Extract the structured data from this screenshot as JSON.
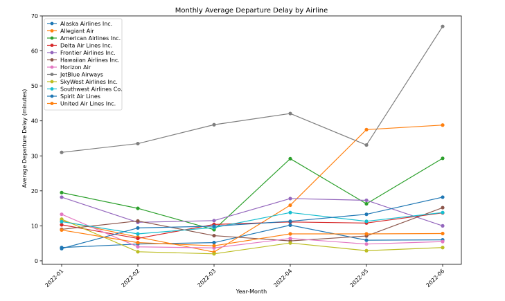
{
  "chart_data": {
    "type": "line",
    "title": "Monthly Average Departure Delay by Airline",
    "xlabel": "Year-Month",
    "ylabel": "Average Departure Delay (minutes)",
    "categories": [
      "2022-01",
      "2022-02",
      "2022-03",
      "2022-04",
      "2022-05",
      "2022-06"
    ],
    "ylim": [
      -1,
      70
    ],
    "yticks": [
      0,
      10,
      20,
      30,
      40,
      50,
      60,
      70
    ],
    "grid": false,
    "legend_position": "upper-left",
    "series": [
      {
        "name": "Alaska Airlines Inc.",
        "color": "#1f77b4",
        "values": [
          3.8,
          4.8,
          5.2,
          10.2,
          5.9,
          6.0
        ]
      },
      {
        "name": "Allegiant Air",
        "color": "#ff7f0e",
        "values": [
          11.4,
          6.8,
          2.5,
          15.9,
          37.5,
          38.8
        ]
      },
      {
        "name": "American Airlines Inc.",
        "color": "#2ca02c",
        "values": [
          19.5,
          15.0,
          8.9,
          29.2,
          16.3,
          29.3
        ]
      },
      {
        "name": "Delta Air Lines Inc.",
        "color": "#d62728",
        "values": [
          10.3,
          6.4,
          10.4,
          11.1,
          10.8,
          13.7
        ]
      },
      {
        "name": "Frontier Airlines Inc.",
        "color": "#9467bd",
        "values": [
          18.2,
          11.0,
          11.5,
          17.8,
          17.3,
          10.0
        ]
      },
      {
        "name": "Hawaiian Airlines Inc.",
        "color": "#8c564b",
        "values": [
          9.0,
          11.4,
          7.2,
          5.7,
          7.1,
          15.2
        ]
      },
      {
        "name": "Horizon Air",
        "color": "#e377c2",
        "values": [
          13.3,
          4.0,
          3.7,
          6.4,
          4.8,
          5.5
        ]
      },
      {
        "name": "JetBlue Airways",
        "color": "#7f7f7f",
        "values": [
          31.0,
          33.5,
          38.9,
          42.1,
          33.1,
          67.0
        ]
      },
      {
        "name": "SkyWest Airlines Inc.",
        "color": "#bcbd22",
        "values": [
          11.9,
          2.6,
          2.0,
          5.1,
          2.9,
          3.8
        ]
      },
      {
        "name": "Southwest Airlines Co.",
        "color": "#17becf",
        "values": [
          11.2,
          7.7,
          9.5,
          13.8,
          11.3,
          13.8
        ]
      },
      {
        "name": "Spirit Air Lines",
        "color": "#1f77b4",
        "values": [
          3.5,
          9.4,
          9.9,
          11.3,
          13.3,
          18.2
        ]
      },
      {
        "name": "United Air Lines Inc.",
        "color": "#ff7f0e",
        "values": [
          8.8,
          5.2,
          4.3,
          7.7,
          7.7,
          7.8
        ]
      }
    ]
  }
}
